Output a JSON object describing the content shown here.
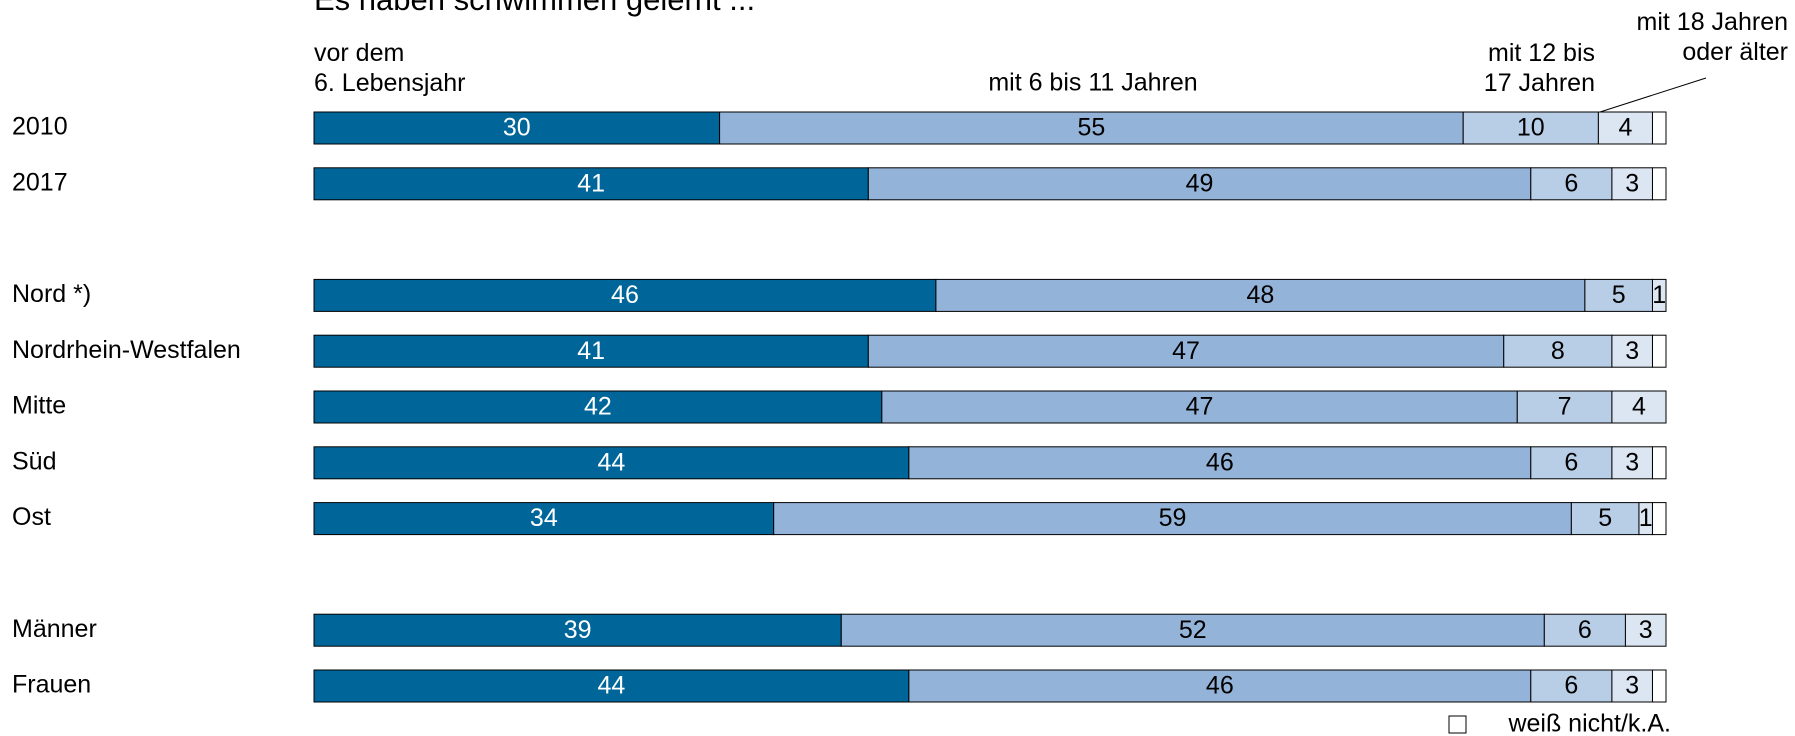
{
  "chart_data": {
    "type": "stacked-bar-horizontal",
    "title": "Es haben schwimmen gelernt ...",
    "categories": [
      "2010",
      "2017",
      "Nord *)",
      "Nordrhein-Westfalen",
      "Mitte",
      "Süd",
      "Ost",
      "Männer",
      "Frauen"
    ],
    "series": [
      {
        "name": "vor dem\n6. Lebensjahr",
        "color": "#00669a",
        "values": [
          30,
          41,
          46,
          41,
          42,
          44,
          34,
          39,
          44
        ]
      },
      {
        "name": "mit 6 bis 11 Jahren",
        "color": "#94b3d9",
        "values": [
          55,
          49,
          48,
          47,
          47,
          46,
          59,
          52,
          46
        ]
      },
      {
        "name": "mit 12 bis\n17 Jahren",
        "color": "#b8cde6",
        "values": [
          10,
          6,
          5,
          8,
          7,
          6,
          5,
          6,
          6
        ]
      },
      {
        "name": "mit 18 Jahren\noder älter",
        "color": "#dce6f2",
        "values": [
          4,
          3,
          1,
          3,
          4,
          3,
          1,
          3,
          3
        ]
      },
      {
        "name": "weiß nicht/k.A.",
        "color": "#ffffff",
        "values": [
          1,
          1,
          0,
          1,
          0,
          1,
          1,
          0,
          1
        ]
      }
    ]
  }
}
